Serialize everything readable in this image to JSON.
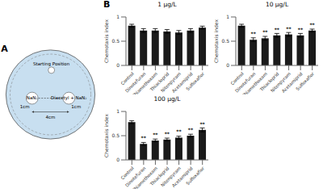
{
  "chart_data": [
    {
      "type": "diagram",
      "annotations": [
        "Starting Position",
        "NaN₂",
        "Diacetyl + NaN₂",
        "1cm",
        "1cm",
        "4cm"
      ],
      "colors": [
        "#c8dff0",
        "#333333"
      ]
    },
    {
      "type": "bar",
      "title": "1 μg/L",
      "ylabel": "Chemotaxis index",
      "categories": [
        "Control",
        "Dinotefuran",
        "Thiamethoxam",
        "Thiacloprid",
        "Nitenpyram",
        "Acetamiprid",
        "Sulfoxaflor"
      ],
      "values": [
        0.82,
        0.72,
        0.72,
        0.7,
        0.68,
        0.72,
        0.78
      ],
      "errors": [
        0.03,
        0.04,
        0.04,
        0.04,
        0.04,
        0.04,
        0.03
      ],
      "color": "#1a1a1a",
      "ylim": [
        0,
        1.0
      ],
      "yticks": [
        0,
        0.5,
        1
      ],
      "grid": false
    },
    {
      "type": "bar",
      "title": "10 μg/L",
      "ylabel": "Chemotaxis index",
      "categories": [
        "Control",
        "Dinotefuran",
        "Thiamethoxam",
        "Thiacloprid",
        "Nitenpyram",
        "Acetamiprid",
        "Sulfoxaflor"
      ],
      "values": [
        0.82,
        0.53,
        0.56,
        0.62,
        0.64,
        0.62,
        0.72
      ],
      "errors": [
        0.03,
        0.04,
        0.04,
        0.04,
        0.04,
        0.04,
        0.03
      ],
      "annotations": [
        null,
        "**",
        "**",
        "**",
        "**",
        "**",
        "**"
      ],
      "color": "#1a1a1a",
      "ylim": [
        0,
        1.0
      ],
      "yticks": [
        0,
        0.5,
        1
      ],
      "grid": false
    },
    {
      "type": "bar",
      "title": "100 μg/L",
      "ylabel": "Chemotaxis index",
      "categories": [
        "Control",
        "Dinotefuran",
        "Thiamethoxam",
        "Thiacloprid",
        "Nitenpyram",
        "Acetamiprid",
        "Sulfoxaflor"
      ],
      "values": [
        0.78,
        0.33,
        0.4,
        0.42,
        0.46,
        0.5,
        0.62
      ],
      "errors": [
        0.03,
        0.03,
        0.03,
        0.03,
        0.03,
        0.03,
        0.04
      ],
      "annotations": [
        null,
        "**",
        "**",
        "**",
        "**",
        "**",
        "**"
      ],
      "color": "#1a1a1a",
      "ylim": [
        0,
        1.0
      ],
      "yticks": [
        0,
        0.5,
        1
      ],
      "grid": false
    }
  ],
  "panel_labels": [
    "A",
    "B"
  ]
}
